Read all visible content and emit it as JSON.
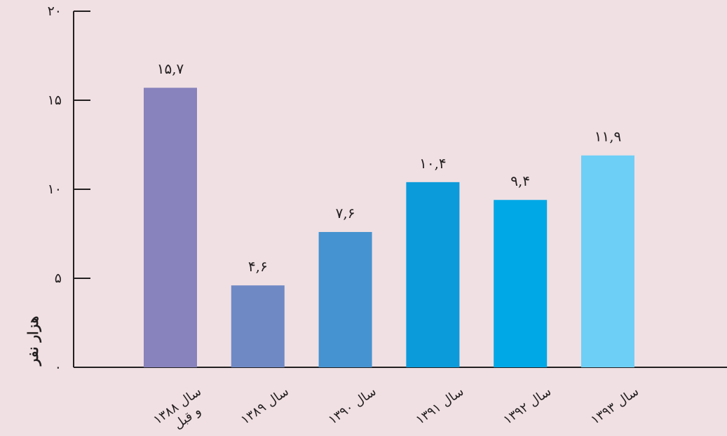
{
  "chart_data": {
    "type": "bar",
    "ylabel": "هزار نفر",
    "xlabel": "",
    "title": "",
    "ylim": [
      0,
      20
    ],
    "yticks": [
      {
        "value": 0,
        "label": "۰"
      },
      {
        "value": 5,
        "label": "۵"
      },
      {
        "value": 10,
        "label": "۱۰"
      },
      {
        "value": 15,
        "label": "۱۵"
      },
      {
        "value": 20,
        "label": "۲۰"
      }
    ],
    "grid": false,
    "categories": [
      {
        "line1": "سال ۱۳۸۸",
        "line2": "و قبل"
      },
      {
        "line1": "سال ۱۳۸۹",
        "line2": ""
      },
      {
        "line1": "سال ۱۳۹۰",
        "line2": ""
      },
      {
        "line1": "سال ۱۳۹۱",
        "line2": ""
      },
      {
        "line1": "سال ۱۳۹۲",
        "line2": ""
      },
      {
        "line1": "سال ۱۳۹۳",
        "line2": ""
      }
    ],
    "values": [
      15.7,
      4.6,
      7.6,
      10.4,
      9.4,
      11.9
    ],
    "value_labels": [
      "۱۵,۷",
      "۴,۶",
      "۷,۶",
      "۱۰,۴",
      "۹,۴",
      "۱۱,۹"
    ],
    "colors": [
      "#8882bd",
      "#6f89c5",
      "#4593d0",
      "#0b9bda",
      "#00a8e6",
      "#6dcff6"
    ],
    "axis_color": "#231f20"
  }
}
